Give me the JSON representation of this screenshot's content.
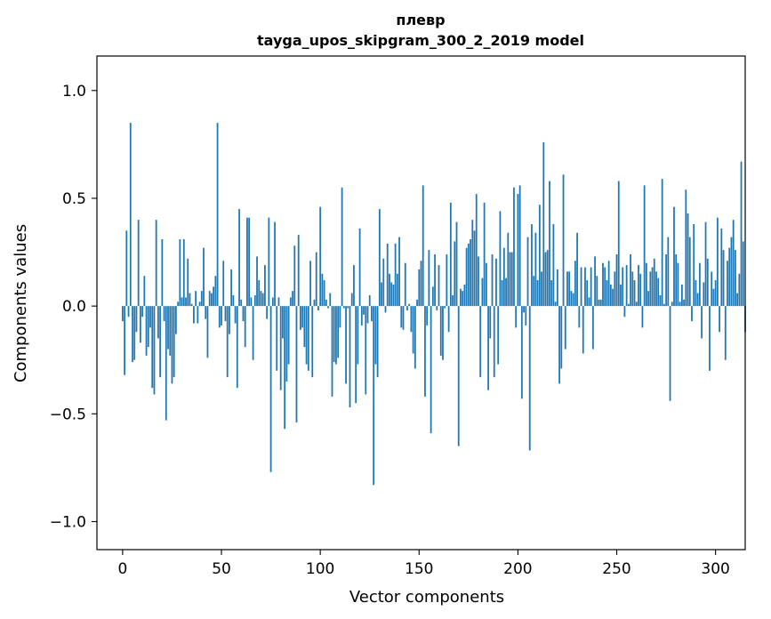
{
  "chart_data": {
    "type": "bar",
    "title": "плевр",
    "subtitle": "tayga_upos_skipgram_300_2_2019 model",
    "xlabel": "Vector components",
    "ylabel": "Components values",
    "xlim": [
      -13,
      315
    ],
    "ylim": [
      -1.13,
      1.16
    ],
    "xticks": [
      0,
      50,
      100,
      150,
      200,
      250,
      300
    ],
    "yticks": [
      1.0,
      0.5,
      0.0,
      -0.5,
      -1.0
    ],
    "ytick_labels": [
      "1.0",
      "0.5",
      "0.0",
      "−0.5",
      "−1.0"
    ],
    "xtick_labels": [
      "0",
      "50",
      "100",
      "150",
      "200",
      "250",
      "300"
    ],
    "color": "#1f77b4",
    "grid": false,
    "values": [
      -0.07,
      -0.32,
      0.35,
      -0.05,
      0.85,
      -0.26,
      -0.25,
      -0.12,
      0.4,
      -0.17,
      -0.05,
      0.14,
      -0.23,
      -0.19,
      -0.1,
      -0.38,
      -0.41,
      0.4,
      -0.15,
      -0.33,
      0.31,
      -0.07,
      -0.53,
      -0.2,
      -0.23,
      -0.36,
      -0.33,
      -0.13,
      0.02,
      0.31,
      0.04,
      0.31,
      0.04,
      0.22,
      0.06,
      0.01,
      -0.08,
      0.07,
      -0.08,
      0.02,
      0.07,
      0.27,
      -0.06,
      -0.24,
      0.07,
      0.06,
      0.09,
      0.14,
      0.85,
      -0.1,
      -0.09,
      0.21,
      -0.07,
      -0.33,
      -0.13,
      0.17,
      0.05,
      -0.08,
      -0.38,
      0.45,
      0.03,
      -0.07,
      -0.19,
      0.41,
      0.41,
      0.04,
      -0.25,
      0.05,
      0.23,
      0.12,
      0.07,
      0.06,
      0.19,
      -0.06,
      0.41,
      -0.77,
      0.04,
      0.39,
      -0.3,
      0.04,
      -0.39,
      -0.15,
      -0.57,
      -0.35,
      -0.27,
      0.04,
      0.07,
      0.28,
      -0.54,
      0.33,
      -0.11,
      -0.1,
      -0.19,
      -0.27,
      -0.3,
      0.21,
      -0.33,
      0.03,
      0.25,
      -0.02,
      0.46,
      0.15,
      0.12,
      0.03,
      -0.01,
      0.06,
      -0.42,
      -0.26,
      -0.27,
      -0.24,
      -0.1,
      0.55,
      -0.01,
      -0.36,
      -0.01,
      -0.47,
      0.06,
      0.19,
      -0.45,
      -0.27,
      0.36,
      -0.09,
      -0.04,
      -0.41,
      -0.08,
      0.05,
      -0.07,
      -0.83,
      -0.27,
      -0.33,
      0.45,
      0.11,
      0.22,
      -0.03,
      0.29,
      0.15,
      0.11,
      0.1,
      0.29,
      0.15,
      0.32,
      -0.1,
      -0.11,
      0.2,
      -0.02,
      0.01,
      -0.12,
      -0.22,
      -0.29,
      0.03,
      0.17,
      0.21,
      0.56,
      -0.42,
      -0.09,
      0.26,
      -0.59,
      0.09,
      0.24,
      -0.02,
      0.19,
      -0.23,
      -0.25,
      -0.01,
      0.24,
      -0.12,
      0.48,
      0.05,
      0.3,
      0.39,
      -0.65,
      0.08,
      0.07,
      0.1,
      0.27,
      0.29,
      0.31,
      0.4,
      0.35,
      0.52,
      0.23,
      -0.33,
      0.13,
      0.48,
      0.2,
      -0.39,
      -0.15,
      0.24,
      -0.33,
      0.22,
      -0.27,
      0.44,
      0.12,
      0.27,
      0.13,
      0.34,
      0.25,
      0.25,
      0.55,
      -0.1,
      0.52,
      0.56,
      -0.43,
      -0.03,
      -0.09,
      0.32,
      -0.67,
      0.38,
      0.14,
      0.34,
      0.12,
      0.47,
      0.16,
      0.76,
      0.25,
      0.26,
      0.58,
      0.12,
      0.38,
      0.02,
      0.17,
      -0.36,
      -0.29,
      0.61,
      -0.2,
      0.16,
      0.16,
      0.07,
      0.06,
      0.21,
      0.34,
      -0.1,
      0.18,
      -0.22,
      0.18,
      0.12,
      0.04,
      0.18,
      -0.2,
      0.23,
      0.14,
      0.03,
      0.03,
      0.2,
      0.18,
      0.12,
      0.21,
      0.1,
      0.08,
      0.16,
      0.24,
      0.58,
      0.1,
      0.18,
      -0.05,
      0.19,
      0.01,
      0.24,
      0.16,
      0.12,
      0.02,
      0.19,
      0.15,
      -0.1,
      0.56,
      0.2,
      0.07,
      0.16,
      0.18,
      0.22,
      0.16,
      0.13,
      0.05,
      0.59,
      0.01,
      0.24,
      0.32,
      -0.44,
      0.02,
      0.46,
      0.24,
      0.2,
      0.02,
      0.1,
      0.03,
      0.54,
      0.43,
      0.32,
      -0.07,
      0.38,
      0.12,
      0.06,
      0.2,
      -0.15,
      0.11,
      0.39,
      0.22,
      -0.3,
      0.16,
      0.08,
      0.12,
      0.41,
      -0.12,
      0.36,
      0.26,
      -0.25,
      0.21,
      0.27,
      0.32,
      0.4,
      0.26,
      0.06,
      0.15,
      0.67,
      0.3,
      -0.12
    ]
  }
}
